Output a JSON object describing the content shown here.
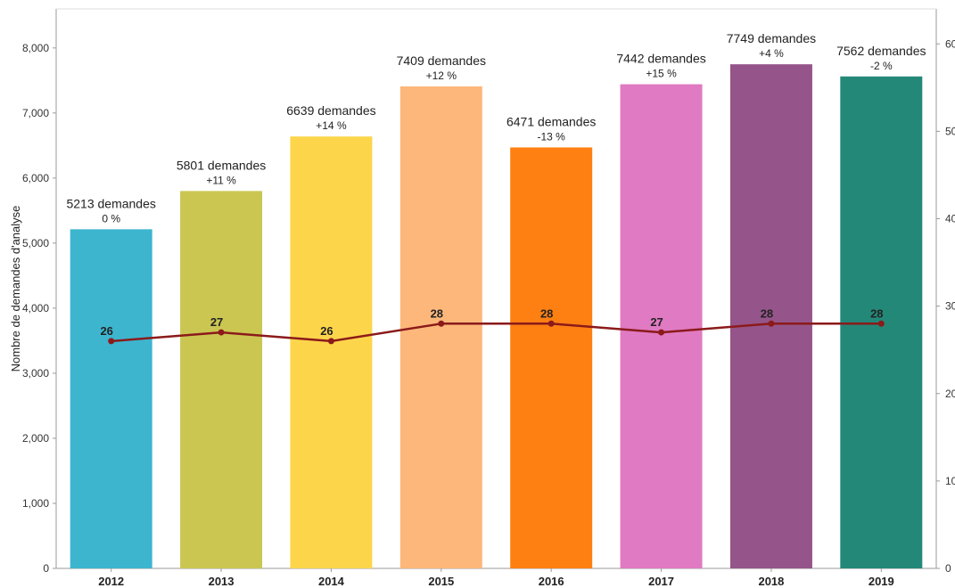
{
  "chart_data": {
    "type": "bar",
    "categories": [
      "2012",
      "2013",
      "2014",
      "2015",
      "2016",
      "2017",
      "2018",
      "2019"
    ],
    "ylabel": "Nombre de demandes d'analyse",
    "ylim": [
      0,
      8600
    ],
    "y_ticks": [
      "0",
      "1,000",
      "2,000",
      "3,000",
      "4,000",
      "5,000",
      "6,000",
      "7,000",
      "8,000"
    ],
    "y_tick_values": [
      0,
      1000,
      2000,
      3000,
      4000,
      5000,
      6000,
      7000,
      8000
    ],
    "y2_ticks": [
      "0",
      "10",
      "20",
      "30",
      "40",
      "50",
      "60"
    ],
    "y2_tick_values": [
      0,
      10,
      20,
      30,
      40,
      50,
      60
    ],
    "y2lim": [
      0,
      64
    ],
    "grid": false,
    "series": [
      {
        "type": "bar",
        "axis": "left",
        "values": [
          5213,
          5801,
          6639,
          7409,
          6471,
          7442,
          7749,
          7562
        ],
        "colors": [
          "#3DB5CF",
          "#CBC652",
          "#FDD54B",
          "#FDB77A",
          "#FE8012",
          "#E07AC3",
          "#95558A",
          "#248879"
        ],
        "labels": [
          "5213 demandes",
          "5801 demandes",
          "6639 demandes",
          "7409 demandes",
          "6471 demandes",
          "7442 demandes",
          "7749 demandes",
          "7562 demandes"
        ],
        "change_labels": [
          "0 %",
          "+11 %",
          "+14 %",
          "+12 %",
          "-13 %",
          "+15 %",
          "+4 %",
          "-2 %"
        ]
      },
      {
        "type": "line",
        "axis": "right",
        "values": [
          26,
          27,
          26,
          28,
          28,
          27,
          28,
          28
        ],
        "labels": [
          "26",
          "27",
          "26",
          "28",
          "28",
          "27",
          "28",
          "28"
        ],
        "color": "#8B1A1A"
      }
    ]
  }
}
